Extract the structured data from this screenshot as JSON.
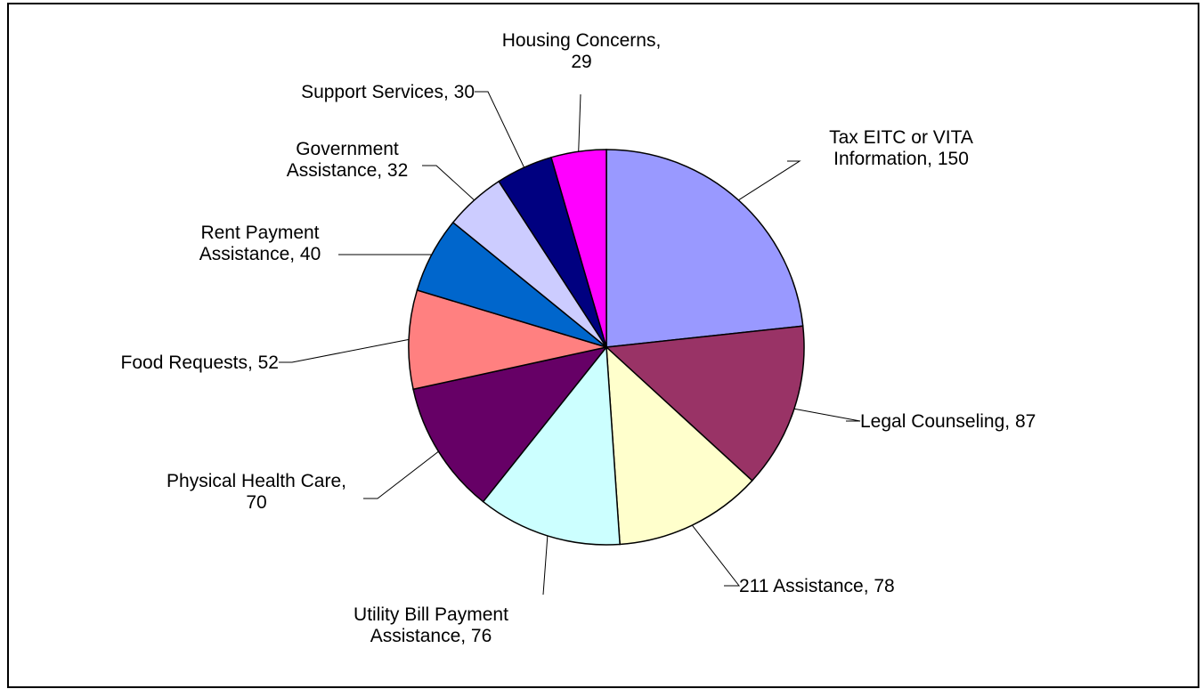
{
  "chart_data": {
    "type": "pie",
    "title": "",
    "start_angle_deg": 0,
    "direction": "clockwise",
    "slices": [
      {
        "label": "Tax EITC or VITA Information",
        "value": 150,
        "color": "#9999ff",
        "label_lines": [
          "Tax EITC or VITA",
          "Information, 150"
        ]
      },
      {
        "label": "Legal Counseling",
        "value": 87,
        "color": "#993366",
        "label_lines": [
          "Legal Counseling, 87"
        ]
      },
      {
        "label": "211 Assistance",
        "value": 78,
        "color": "#ffffcc",
        "label_lines": [
          "211 Assistance, 78"
        ]
      },
      {
        "label": "Utility Bill Payment Assistance",
        "value": 76,
        "color": "#ccffff",
        "label_lines": [
          "Utility Bill Payment",
          "Assistance, 76"
        ]
      },
      {
        "label": "Physical Health Care",
        "value": 70,
        "color": "#660066",
        "label_lines": [
          "Physical Health Care,",
          "70"
        ]
      },
      {
        "label": "Food Requests",
        "value": 52,
        "color": "#ff8080",
        "label_lines": [
          "Food Requests, 52"
        ]
      },
      {
        "label": "Rent Payment Assistance",
        "value": 40,
        "color": "#0066cc",
        "label_lines": [
          "Rent Payment",
          "Assistance, 40"
        ]
      },
      {
        "label": "Government Assistance",
        "value": 32,
        "color": "#ccccff",
        "label_lines": [
          "Government",
          "Assistance, 32"
        ]
      },
      {
        "label": "Support Services",
        "value": 30,
        "color": "#000080",
        "label_lines": [
          "Support Services, 30"
        ]
      },
      {
        "label": "Housing Concerns",
        "value": 29,
        "color": "#ff00ff",
        "label_lines": [
          "Housing Concerns,",
          "29"
        ]
      }
    ]
  }
}
